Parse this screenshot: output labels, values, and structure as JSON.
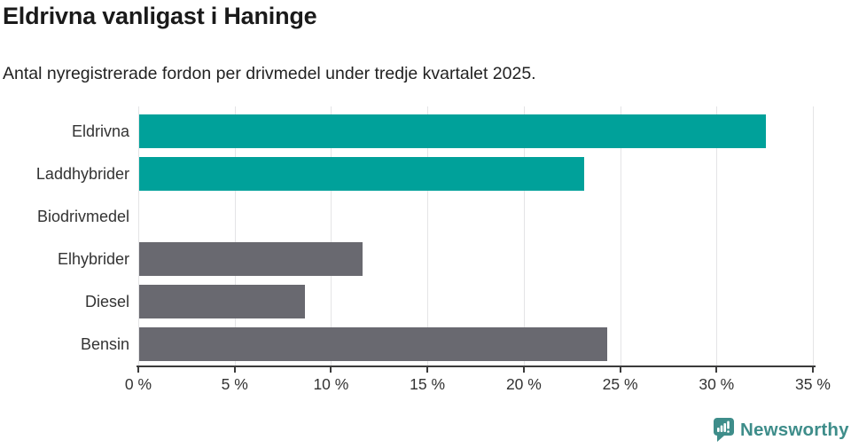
{
  "title": "Eldrivna vanligast i Haninge",
  "subtitle": "Antal nyregistrerade fordon per drivmedel under tredje kvartalet 2025.",
  "chart_data": {
    "type": "bar",
    "orientation": "horizontal",
    "title": "Eldrivna vanligast i Haninge",
    "subtitle": "Antal nyregistrerade fordon per drivmedel under tredje kvartalet 2025.",
    "categories": [
      "Eldrivna",
      "Laddhybrider",
      "Biodrivmedel",
      "Elhybrider",
      "Diesel",
      "Bensin"
    ],
    "values": [
      32.5,
      23.1,
      0,
      11.6,
      8.6,
      24.3
    ],
    "unit": "%",
    "xlabel": "",
    "ylabel": "",
    "xlim": [
      0,
      35
    ],
    "x_tick_values": [
      0,
      5,
      10,
      15,
      20,
      25,
      30,
      35
    ],
    "x_tick_suffix": " %",
    "grid": true,
    "legend_position": "none",
    "colors": {
      "highlight": "#00A19A",
      "default": "#696970",
      "gridline": "#e4e4e6",
      "axis": "#3b3b3b",
      "label_text": "#333333"
    },
    "bar_colors": [
      "#00A19A",
      "#00A19A",
      "#696970",
      "#696970",
      "#696970",
      "#696970"
    ]
  },
  "branding": {
    "logo_text": "Newsworthy",
    "logo_color": "#3E8D8A",
    "logo_icon": "bar-chart-speech-bubble-icon"
  }
}
